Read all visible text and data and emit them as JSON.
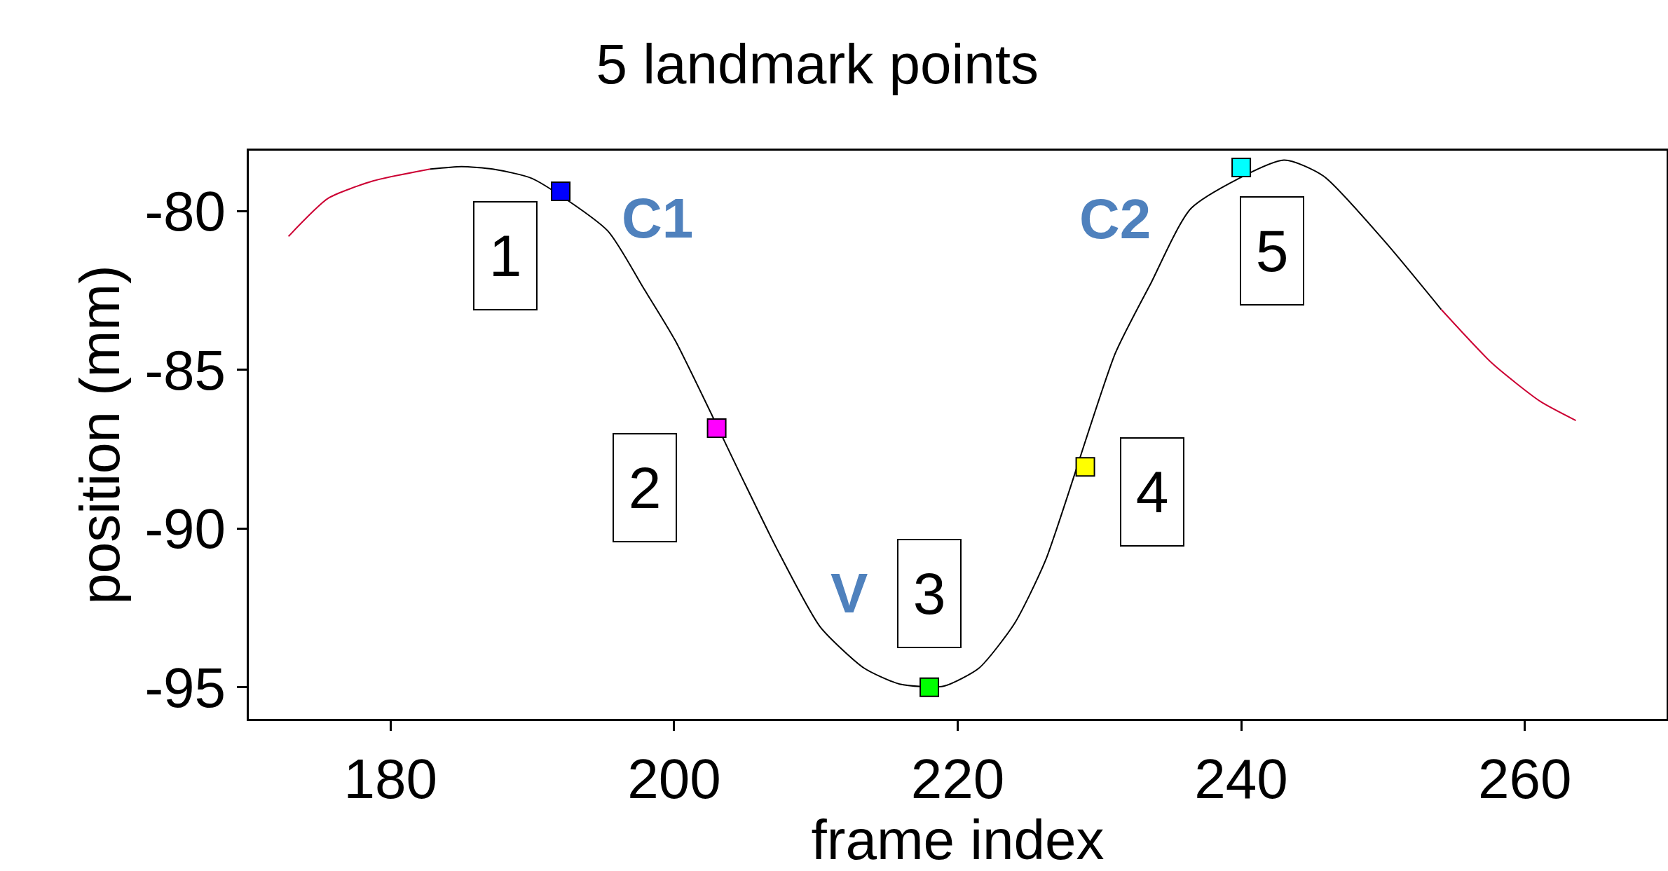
{
  "chart_data": {
    "type": "line",
    "title": "5 landmark points",
    "xlabel": "frame index",
    "ylabel": "position (mm)",
    "xlim": [
      170,
      270
    ],
    "xticks": [
      180,
      200,
      220,
      240,
      260
    ],
    "ylim": [
      -96,
      -78.1
    ],
    "yticks": [
      -80,
      -85,
      -90,
      -95
    ],
    "grid": false,
    "series": [
      {
        "color": "#cc0033",
        "x": [
          172.8,
          175.6,
          178.8,
          182.8
        ],
        "values": [
          -80.8,
          -79.6,
          -79.05,
          -78.68
        ]
      },
      {
        "color": "#000000",
        "x": [
          182.8,
          185,
          187.2,
          190,
          195.3,
          197.8,
          200.1,
          205,
          207.2,
          210.3,
          213.4,
          215.9,
          219,
          221.5,
          224,
          226.2,
          231.1,
          233.6,
          236.5,
          243,
          245.8,
          250.2,
          254.1
        ],
        "values": [
          -78.68,
          -78.6,
          -78.68,
          -78.98,
          -80.62,
          -82.4,
          -84.1,
          -88.6,
          -90.6,
          -93.1,
          -94.4,
          -94.9,
          -94.97,
          -94.4,
          -93,
          -91,
          -84.5,
          -82.3,
          -79.9,
          -78.4,
          -78.9,
          -81,
          -83.1
        ]
      },
      {
        "color": "#cc0033",
        "x": [
          254.1,
          257.7,
          261.1,
          263.6
        ],
        "values": [
          -83.1,
          -84.8,
          -86,
          -86.6
        ]
      },
      {
        "type": "scatter",
        "marker": "square",
        "x": [
          192,
          203,
          218,
          229,
          240
        ],
        "values": [
          -79.38,
          -86.84,
          -95,
          -88.06,
          -78.63
        ],
        "colors": [
          "#0000ff",
          "#ff00ff",
          "#00ff00",
          "#ffff00",
          "#00ffff"
        ]
      }
    ],
    "annotations": [
      {
        "text": "1",
        "x": 192,
        "y": -79.38
      },
      {
        "text": "2",
        "x": 203,
        "y": -86.84
      },
      {
        "text": "3",
        "x": 218,
        "y": -95
      },
      {
        "text": "4",
        "x": 229,
        "y": -88.06
      },
      {
        "text": "5",
        "x": 240,
        "y": -78.63
      },
      {
        "text": "C1",
        "x": 192,
        "y": -79.38
      },
      {
        "text": "V",
        "x": 218,
        "y": -95
      },
      {
        "text": "C2",
        "x": 240,
        "y": -78.63
      }
    ]
  }
}
